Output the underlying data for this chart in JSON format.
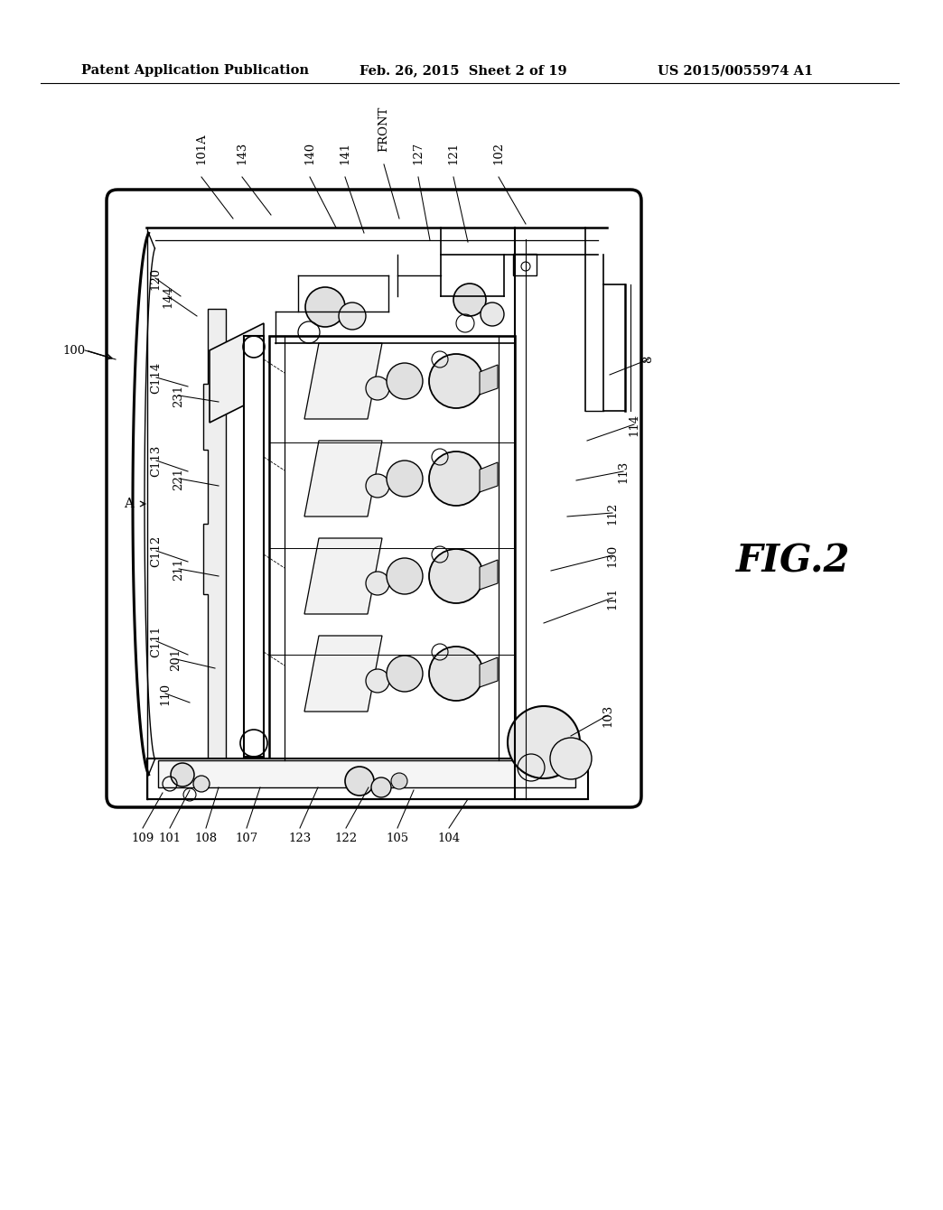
{
  "header_left": "Patent Application Publication",
  "header_mid": "Feb. 26, 2015  Sheet 2 of 19",
  "header_right": "US 2015/0055974 A1",
  "fig_label": "FIG.2",
  "background_color": "#ffffff",
  "line_color": "#000000",
  "header_fontsize": 10.5,
  "fig_label_fontsize": 30,
  "label_fontsize": 9.5,
  "top_labels": [
    [
      "101A",
      213,
      172,
      248,
      232
    ],
    [
      "143",
      258,
      172,
      290,
      228
    ],
    [
      "140",
      333,
      172,
      362,
      242
    ],
    [
      "141",
      372,
      172,
      393,
      248
    ],
    [
      "FRONT",
      415,
      158,
      432,
      232
    ],
    [
      "127",
      453,
      172,
      466,
      256
    ],
    [
      "121",
      492,
      172,
      508,
      258
    ],
    [
      "102",
      542,
      172,
      572,
      238
    ]
  ],
  "left_labels_rotated": [
    [
      "120",
      162,
      298,
      190,
      318
    ],
    [
      "144",
      176,
      318,
      208,
      340
    ],
    [
      "C114",
      163,
      408,
      198,
      418
    ],
    [
      "231",
      188,
      428,
      232,
      435
    ],
    [
      "C113",
      163,
      500,
      198,
      512
    ],
    [
      "221",
      188,
      520,
      232,
      528
    ],
    [
      "C112",
      163,
      600,
      198,
      612
    ],
    [
      "211",
      188,
      620,
      232,
      628
    ],
    [
      "C111",
      163,
      700,
      198,
      715
    ],
    [
      "201",
      185,
      720,
      228,
      730
    ],
    [
      "110",
      173,
      758,
      200,
      768
    ]
  ],
  "right_labels": [
    [
      "8",
      708,
      388,
      665,
      405
    ],
    [
      "114",
      692,
      460,
      640,
      478
    ],
    [
      "113",
      680,
      512,
      628,
      522
    ],
    [
      "112",
      668,
      558,
      618,
      562
    ],
    [
      "130",
      668,
      605,
      600,
      622
    ],
    [
      "111",
      668,
      652,
      592,
      680
    ],
    [
      "103",
      663,
      782,
      622,
      805
    ]
  ],
  "bottom_labels": [
    [
      "109",
      148,
      912,
      170,
      868
    ],
    [
      "101",
      178,
      912,
      200,
      865
    ],
    [
      "108",
      218,
      912,
      232,
      862
    ],
    [
      "107",
      263,
      912,
      278,
      862
    ],
    [
      "123",
      322,
      912,
      342,
      862
    ],
    [
      "122",
      373,
      912,
      398,
      862
    ],
    [
      "105",
      430,
      912,
      448,
      865
    ],
    [
      "104",
      487,
      912,
      508,
      875
    ]
  ]
}
